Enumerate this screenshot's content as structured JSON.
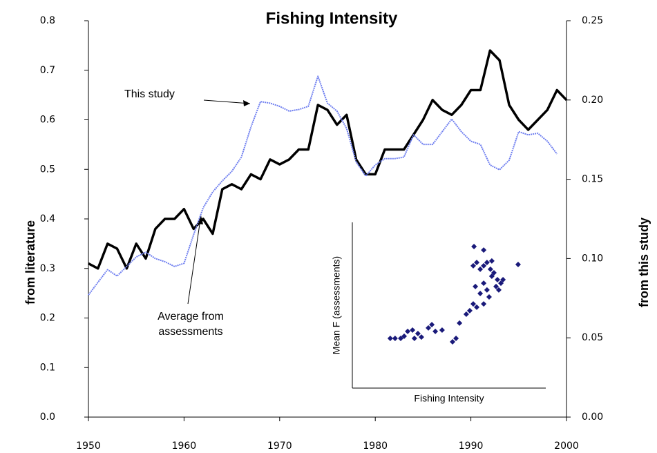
{
  "chart_data": [
    {
      "type": "line",
      "title": "Fishing Intensity",
      "ylabel": "from literature",
      "y2label": "from this study",
      "x": [
        1950,
        1951,
        1952,
        1953,
        1954,
        1955,
        1956,
        1957,
        1958,
        1959,
        1960,
        1961,
        1962,
        1963,
        1964,
        1965,
        1966,
        1967,
        1968,
        1969,
        1970,
        1971,
        1972,
        1973,
        1974,
        1975,
        1976,
        1977,
        1978,
        1979,
        1980,
        1981,
        1982,
        1983,
        1984,
        1985,
        1986,
        1987,
        1988,
        1989,
        1990,
        1991,
        1992,
        1993,
        1994,
        1995,
        1996,
        1997,
        1998,
        1999,
        2000
      ],
      "series": [
        {
          "name": "Average from assessments",
          "color": "#000000",
          "axis": "y",
          "values": [
            0.31,
            0.3,
            0.35,
            0.34,
            0.3,
            0.35,
            0.32,
            0.38,
            0.4,
            0.4,
            0.42,
            0.38,
            0.4,
            0.37,
            0.46,
            0.47,
            0.46,
            0.49,
            0.48,
            0.52,
            0.51,
            0.52,
            0.54,
            0.54,
            0.63,
            0.62,
            0.59,
            0.61,
            0.52,
            0.49,
            0.49,
            0.54,
            0.54,
            0.54,
            0.57,
            0.6,
            0.64,
            0.62,
            0.61,
            0.63,
            0.66,
            0.66,
            0.74,
            0.72,
            0.63,
            0.6,
            0.58,
            0.6,
            0.62,
            0.66,
            0.64
          ]
        },
        {
          "name": "This study",
          "color": "#6f7ff0",
          "axis": "y2",
          "values": [
            0.077,
            0.085,
            0.093,
            0.089,
            0.095,
            0.101,
            0.104,
            0.1,
            0.098,
            0.095,
            0.097,
            0.115,
            0.132,
            0.142,
            0.149,
            0.155,
            0.164,
            0.183,
            0.199,
            0.198,
            0.196,
            0.193,
            0.194,
            0.196,
            0.215,
            0.198,
            0.193,
            0.182,
            0.161,
            0.152,
            0.159,
            0.163,
            0.163,
            0.164,
            0.178,
            0.172,
            0.172,
            0.18,
            0.188,
            0.18,
            0.174,
            0.172,
            0.159,
            0.156,
            0.162,
            0.18,
            0.178,
            0.179,
            0.174,
            0.166,
            null
          ]
        }
      ],
      "annotations": [
        {
          "lines": [
            "This study"
          ]
        },
        {
          "lines": [
            "Average from",
            "assessments"
          ]
        }
      ],
      "xlim": [
        1950,
        2000
      ],
      "xticks": [
        1950,
        1960,
        1970,
        1980,
        1990,
        2000
      ],
      "ylim": [
        0,
        0.8
      ],
      "yticks": [
        {
          "value": 0,
          "label": "0.0"
        },
        0.1,
        0.2,
        0.3,
        0.4,
        0.5,
        0.6,
        0.7,
        0.8
      ],
      "y2lim": [
        0,
        0.25
      ],
      "y2ticks": [
        {
          "value": 0,
          "label": "0.00"
        },
        {
          "value": 0.05,
          "label": "0.05"
        },
        {
          "value": 0.1,
          "label": "0.10"
        },
        {
          "value": 0.15,
          "label": "0.15"
        },
        {
          "value": 0.2,
          "label": "0.20"
        },
        {
          "value": 0.25,
          "label": "0.25"
        }
      ],
      "grid": false
    },
    {
      "type": "scatter",
      "xlabel": "Fishing Intensity",
      "ylabel": "Mean F (assessments)",
      "color": "#1a1a7a",
      "x": [
        19.6,
        22.1,
        25,
        26.8,
        28.6,
        31.1,
        33.9,
        32.1,
        35.7,
        39.3,
        41.1,
        42.9,
        46.4,
        51.8,
        53.6,
        55.4,
        58.9,
        60.7,
        62.5,
        63.6,
        62.5,
        64.3,
        66.1,
        67.9,
        69.6,
        71.4,
        72.1,
        67.9,
        66.1,
        69.6,
        72.1,
        73.2,
        75,
        76.8,
        75.7,
        77.9,
        67.9,
        64.3,
        85.7,
        62.9,
        67.9,
        74.3,
        70.7
      ],
      "y": [
        30,
        30,
        30,
        31.3,
        34.2,
        35,
        32.9,
        30,
        30.8,
        36.3,
        38.3,
        34.2,
        35,
        27.9,
        30,
        39.2,
        44.6,
        46.7,
        50.8,
        61.3,
        73.8,
        75.8,
        71.7,
        73.8,
        75.8,
        71.7,
        76.7,
        63.3,
        57.1,
        59.2,
        67.5,
        69.6,
        65.4,
        63.3,
        59.2,
        65.4,
        50.8,
        48.8,
        74.6,
        85.4,
        83.3,
        61.3,
        55
      ],
      "xlim": [
        0,
        100
      ],
      "ylim": [
        0,
        100
      ]
    }
  ]
}
